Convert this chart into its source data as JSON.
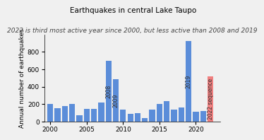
{
  "title": "Earthquakes in central Lake Taupo",
  "subtitle": "2022 is third most active year since 2000, but less active than 2008 and 2019",
  "ylabel": "Annual number of earthquakes",
  "years": [
    2000,
    2001,
    2002,
    2003,
    2004,
    2005,
    2006,
    2007,
    2008,
    2009,
    2010,
    2011,
    2012,
    2013,
    2014,
    2015,
    2016,
    2017,
    2018,
    2019,
    2020,
    2021,
    2022
  ],
  "values": [
    200,
    155,
    175,
    205,
    70,
    150,
    145,
    220,
    700,
    490,
    135,
    90,
    95,
    40,
    140,
    205,
    235,
    135,
    165,
    920,
    110,
    120,
    520
  ],
  "bar_colors": [
    "#5b8dd9",
    "#5b8dd9",
    "#5b8dd9",
    "#5b8dd9",
    "#5b8dd9",
    "#5b8dd9",
    "#5b8dd9",
    "#5b8dd9",
    "#5b8dd9",
    "#5b8dd9",
    "#5b8dd9",
    "#5b8dd9",
    "#5b8dd9",
    "#5b8dd9",
    "#5b8dd9",
    "#5b8dd9",
    "#5b8dd9",
    "#5b8dd9",
    "#5b8dd9",
    "#5b8dd9",
    "#5b8dd9",
    "#5b8dd9",
    "#f08080"
  ],
  "labeled_bars": {
    "2008": {
      "year": 2008,
      "label": "2008"
    },
    "2009": {
      "year": 2009,
      "label": "2009"
    },
    "2019": {
      "year": 2019,
      "label": "2019"
    },
    "2022": {
      "year": 2022,
      "label": "2022 sequence"
    }
  },
  "ylim": [
    0,
    1000
  ],
  "yticks": [
    0,
    200,
    400,
    600,
    800
  ],
  "xlim": [
    1999.2,
    2023.3
  ],
  "background_color": "#f0f0f0",
  "title_fontsize": 7.5,
  "subtitle_fontsize": 6.5,
  "label_fontsize": 5.5,
  "ylabel_fontsize": 6.5,
  "tick_fontsize": 6.5
}
